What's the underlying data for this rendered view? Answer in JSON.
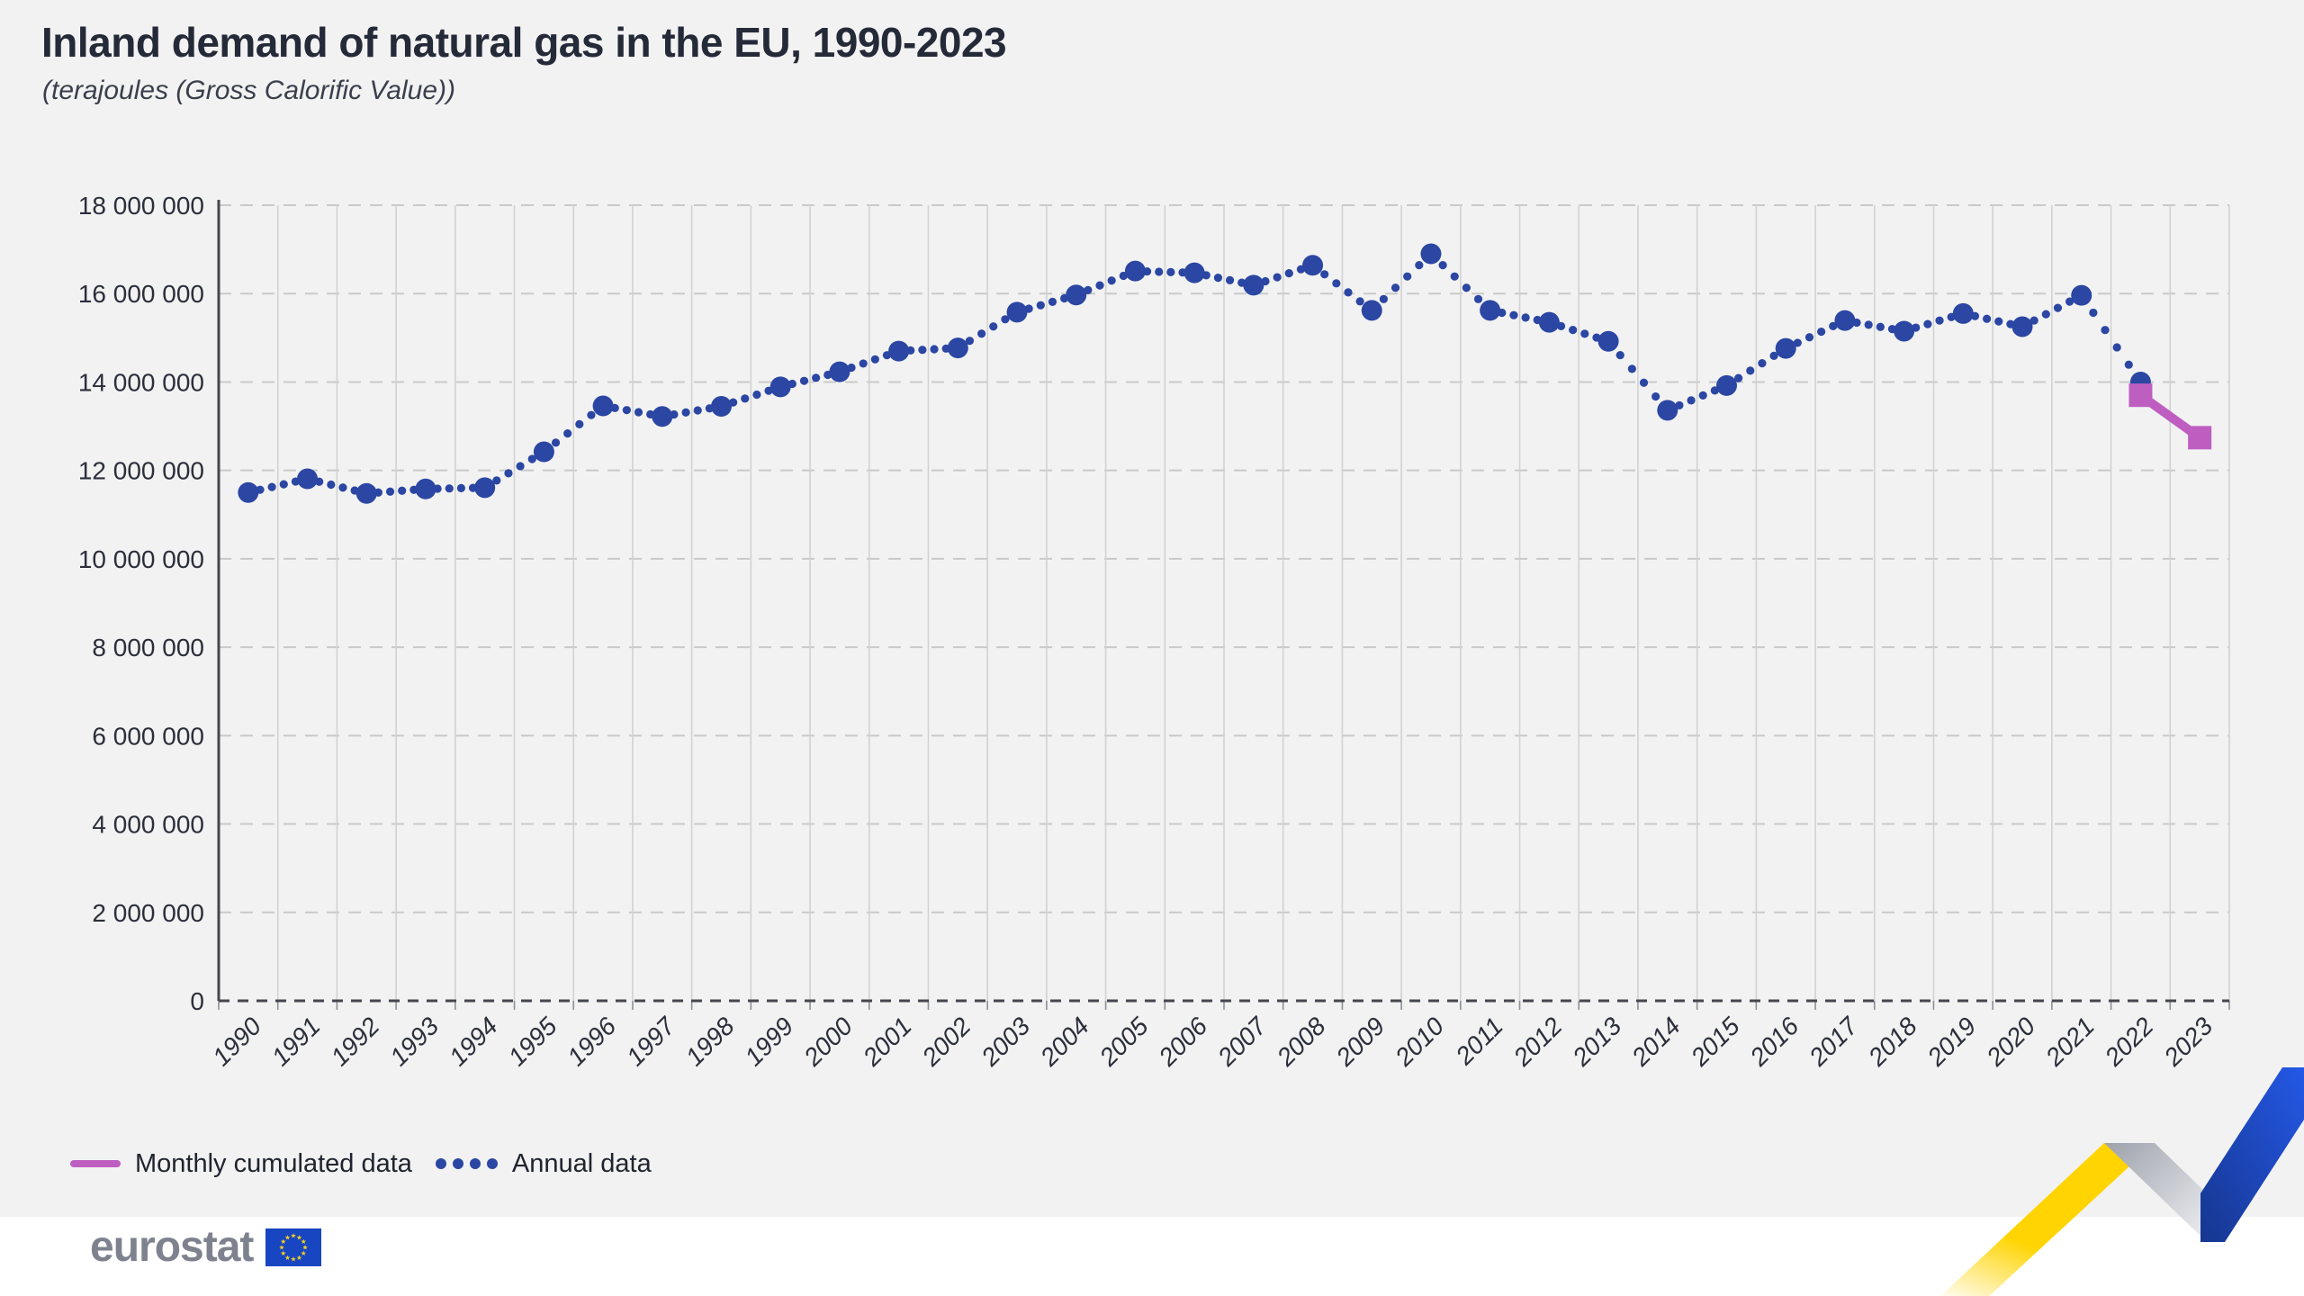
{
  "header": {
    "title": "Inland demand of natural gas in the EU, 1990-2023",
    "subtitle": "(terajoules (Gross Calorific Value))"
  },
  "legend": {
    "items": [
      {
        "label": "Monthly cumulated data",
        "swatch": "magenta-line",
        "color": "#be5ec1"
      },
      {
        "label": "Annual data",
        "swatch": "blue-dots",
        "color": "#2b46a3"
      }
    ]
  },
  "footer": {
    "brand": "eurostat",
    "flag_icon": "eu-flag"
  },
  "colors": {
    "background": "#f2f2f2",
    "footer_background": "#ffffff",
    "annual_series": "#2b46a3",
    "monthly_series": "#be5ec1",
    "grid_vertical": "#d2d2d2",
    "grid_horizontal": "#c9c9c9",
    "axis": "#45474e",
    "text": "#252a39",
    "deco_yellow": "#ffd400",
    "deco_blue": "#1d4fd7",
    "brand_gray": "#7e828f"
  },
  "chart_data": {
    "type": "line",
    "title": "Inland demand of natural gas in the EU, 1990-2023",
    "unit_label": "terajoules (Gross Calorific Value)",
    "x": [
      1990,
      1991,
      1992,
      1993,
      1994,
      1995,
      1996,
      1997,
      1998,
      1999,
      2000,
      2001,
      2002,
      2003,
      2004,
      2005,
      2006,
      2007,
      2008,
      2009,
      2010,
      2011,
      2012,
      2013,
      2014,
      2015,
      2016,
      2017,
      2018,
      2019,
      2020,
      2021,
      2022,
      2023
    ],
    "series": [
      {
        "name": "Annual data",
        "style": "dotted",
        "color": "#2b46a3",
        "values": [
          11500000,
          11810000,
          11480000,
          11580000,
          11610000,
          12420000,
          13460000,
          13220000,
          13450000,
          13890000,
          14230000,
          14700000,
          14770000,
          15580000,
          15970000,
          16510000,
          16470000,
          16190000,
          16640000,
          15620000,
          16900000,
          15620000,
          15350000,
          14920000,
          13360000,
          13920000,
          14760000,
          15390000,
          15150000,
          15550000,
          15250000,
          15960000,
          14000000,
          null
        ]
      },
      {
        "name": "Monthly cumulated data",
        "style": "solid-square",
        "color": "#be5ec1",
        "values": [
          null,
          null,
          null,
          null,
          null,
          null,
          null,
          null,
          null,
          null,
          null,
          null,
          null,
          null,
          null,
          null,
          null,
          null,
          null,
          null,
          null,
          null,
          null,
          null,
          null,
          null,
          null,
          null,
          null,
          null,
          null,
          null,
          13700000,
          12740000
        ]
      }
    ],
    "ylim": [
      0,
      18000000
    ],
    "ytick_step": 2000000,
    "ytick_labels": [
      "0",
      "2 000 000",
      "4 000 000",
      "6 000 000",
      "8 000 000",
      "10 000 000",
      "12 000 000",
      "14 000 000",
      "16 000 000",
      "18 000 000"
    ],
    "grid": true,
    "legend_position": "bottom-left"
  }
}
